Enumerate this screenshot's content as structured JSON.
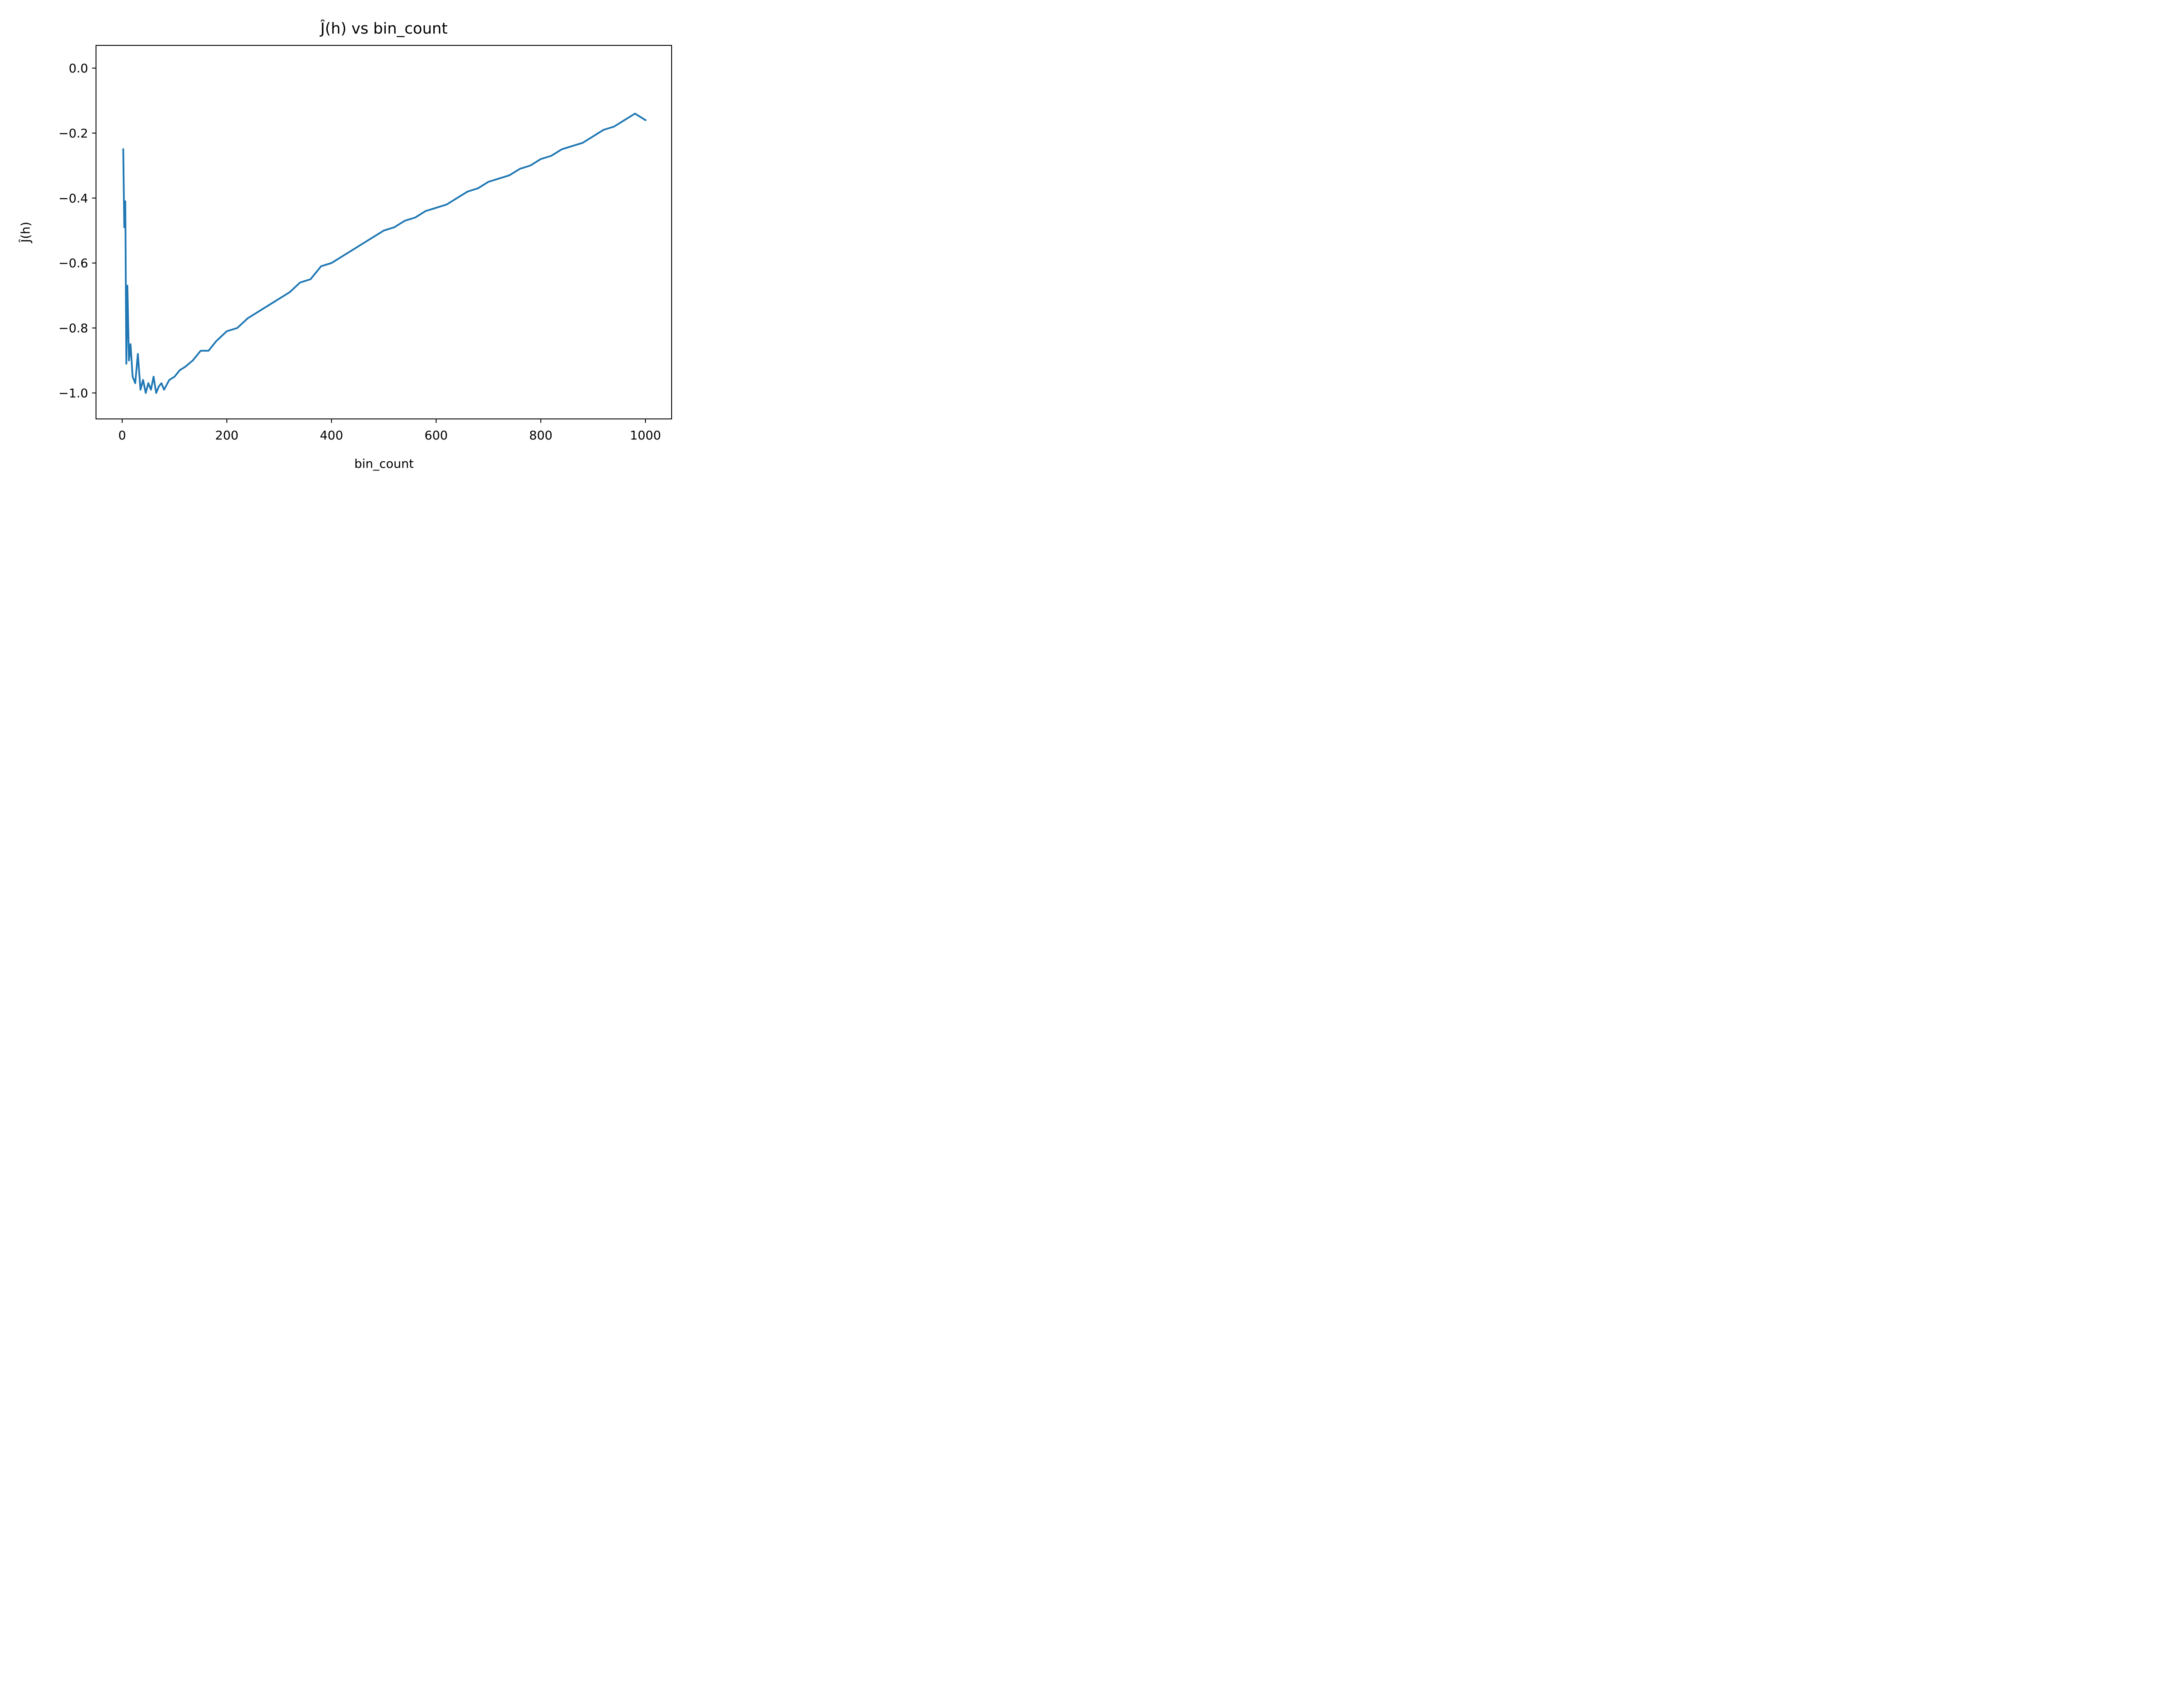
{
  "chart_data": {
    "type": "line",
    "title": "Ĵ(h) vs bin_count",
    "xlabel": "bin_count",
    "ylabel": "Ĵ(h)",
    "xlim": [
      -50,
      1050
    ],
    "ylim": [
      -1.08,
      0.07
    ],
    "xticks": [
      0,
      200,
      400,
      600,
      800,
      1000
    ],
    "yticks": [
      0.0,
      -0.2,
      -0.4,
      -0.6,
      -0.8,
      -1.0
    ],
    "xtick_labels": [
      "0",
      "200",
      "400",
      "600",
      "800",
      "1000"
    ],
    "ytick_labels": [
      "0.0",
      "−0.2",
      "−0.4",
      "−0.6",
      "−0.8",
      "−1.0"
    ],
    "grid": false,
    "color": "#1f77b4",
    "series": [
      {
        "x": [
          2,
          4,
          6,
          8,
          10,
          13,
          16,
          20,
          25,
          30,
          35,
          40,
          45,
          50,
          55,
          60,
          65,
          70,
          75,
          80,
          90,
          100,
          110,
          120,
          135,
          150,
          165,
          180,
          200,
          220,
          240,
          260,
          280,
          300,
          320,
          340,
          360,
          380,
          400,
          420,
          440,
          460,
          480,
          500,
          520,
          540,
          560,
          580,
          600,
          620,
          640,
          660,
          680,
          700,
          720,
          740,
          760,
          780,
          800,
          820,
          840,
          860,
          880,
          900,
          920,
          940,
          960,
          980,
          1000
        ],
        "y": [
          -0.25,
          -0.49,
          -0.41,
          -0.91,
          -0.67,
          -0.9,
          -0.85,
          -0.95,
          -0.97,
          -0.88,
          -0.99,
          -0.96,
          -1.0,
          -0.97,
          -0.99,
          -0.95,
          -1.0,
          -0.98,
          -0.97,
          -0.99,
          -0.96,
          -0.95,
          -0.93,
          -0.92,
          -0.9,
          -0.87,
          -0.87,
          -0.84,
          -0.81,
          -0.8,
          -0.77,
          -0.75,
          -0.73,
          -0.71,
          -0.69,
          -0.66,
          -0.65,
          -0.61,
          -0.6,
          -0.58,
          -0.56,
          -0.54,
          -0.52,
          -0.5,
          -0.49,
          -0.47,
          -0.46,
          -0.44,
          -0.43,
          -0.42,
          -0.4,
          -0.38,
          -0.37,
          -0.35,
          -0.34,
          -0.33,
          -0.31,
          -0.3,
          -0.28,
          -0.27,
          -0.25,
          -0.24,
          -0.23,
          -0.21,
          -0.19,
          -0.18,
          -0.16,
          -0.14,
          -0.16
        ]
      }
    ]
  }
}
